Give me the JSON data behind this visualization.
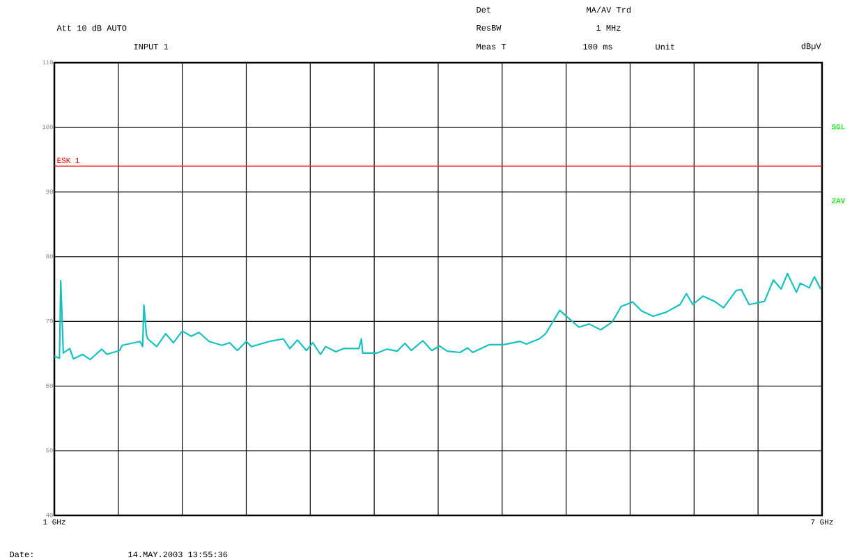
{
  "chart_data": {
    "type": "line",
    "color": "#17c0c0",
    "marker": "none",
    "line_style": "solid",
    "grid": true,
    "xlim": [
      1,
      7
    ],
    "ylim": [
      40,
      110
    ],
    "xticks": [
      {
        "value": 1,
        "label": "1 GHz"
      },
      {
        "value": 1.5,
        "label": null
      },
      {
        "value": 2,
        "label": null
      },
      {
        "value": 2.5,
        "label": null
      },
      {
        "value": 3,
        "label": null
      },
      {
        "value": 3.5,
        "label": null
      },
      {
        "value": 4,
        "label": null
      },
      {
        "value": 4.5,
        "label": null
      },
      {
        "value": 5,
        "label": null
      },
      {
        "value": 5.5,
        "label": null
      },
      {
        "value": 6,
        "label": null
      },
      {
        "value": 6.5,
        "label": null
      },
      {
        "value": 7,
        "label": "7 GHz"
      }
    ],
    "yticks": [
      40,
      50,
      60,
      70,
      80,
      90,
      100,
      110
    ],
    "x": [
      1.0,
      1.04,
      1.05,
      1.07,
      1.12,
      1.15,
      1.22,
      1.28,
      1.37,
      1.41,
      1.51,
      1.53,
      1.67,
      1.69,
      1.7,
      1.72,
      1.73,
      1.8,
      1.87,
      1.93,
      2.0,
      2.07,
      2.13,
      2.21,
      2.31,
      2.37,
      2.43,
      2.5,
      2.54,
      2.68,
      2.79,
      2.84,
      2.9,
      2.97,
      3.02,
      3.08,
      3.12,
      3.2,
      3.26,
      3.38,
      3.4,
      3.41,
      3.52,
      3.6,
      3.68,
      3.74,
      3.79,
      3.88,
      3.95,
      4.01,
      4.07,
      4.17,
      4.23,
      4.27,
      4.4,
      4.51,
      4.64,
      4.69,
      4.79,
      4.84,
      4.95,
      4.99,
      5.1,
      5.18,
      5.27,
      5.36,
      5.43,
      5.52,
      5.59,
      5.68,
      5.78,
      5.89,
      5.94,
      5.99,
      6.07,
      6.16,
      6.23,
      6.33,
      6.37,
      6.43,
      6.55,
      6.62,
      6.68,
      6.73,
      6.8,
      6.83,
      6.9,
      6.94,
      6.99
    ],
    "values": [
      64.6,
      64.3,
      76.3,
      65.1,
      65.8,
      64.2,
      64.9,
      64.1,
      65.7,
      64.9,
      65.5,
      66.3,
      66.9,
      66.1,
      72.5,
      67.9,
      67.3,
      66.1,
      68.1,
      66.7,
      68.5,
      67.7,
      68.3,
      66.9,
      66.3,
      66.7,
      65.5,
      66.9,
      66.1,
      66.9,
      67.3,
      65.8,
      67.1,
      65.5,
      66.7,
      64.9,
      66.1,
      65.3,
      65.8,
      65.8,
      67.3,
      65.1,
      65.1,
      65.7,
      65.4,
      66.6,
      65.5,
      67.0,
      65.5,
      66.2,
      65.4,
      65.2,
      65.9,
      65.2,
      66.4,
      66.4,
      66.9,
      66.5,
      67.3,
      68.1,
      71.7,
      71.0,
      69.1,
      69.6,
      68.7,
      69.9,
      72.3,
      73.0,
      71.6,
      70.8,
      71.4,
      72.6,
      74.3,
      72.6,
      73.9,
      73.1,
      72.1,
      74.8,
      74.9,
      72.6,
      73.1,
      76.4,
      75.0,
      77.4,
      74.5,
      75.9,
      75.2,
      76.9,
      75.0
    ],
    "ref_lines": [
      {
        "axis": "y",
        "value": 94,
        "label": "ESK 1",
        "color": "#ff0000"
      }
    ],
    "annotations": [
      "Att 10 dB AUTO",
      "INPUT 1",
      "Det",
      "MA/AV Trd",
      "ResBW",
      "1 MHz",
      "Meas T",
      "100 ms",
      "Unit",
      "dBµV",
      "SGL",
      "2AV",
      "Date:",
      "14.MAY.2003  13:55:36"
    ]
  }
}
